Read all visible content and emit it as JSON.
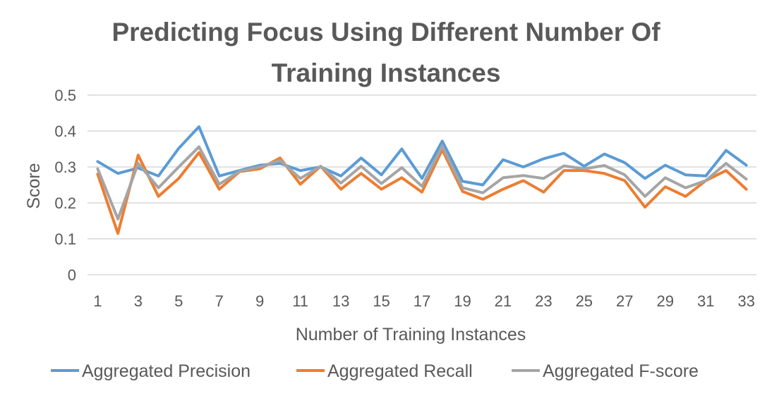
{
  "chart_data": {
    "type": "line",
    "title_lines": [
      "Predicting Focus Using Different Number Of",
      "Training Instances"
    ],
    "xlabel": "Number of Training Instances",
    "ylabel": "Score",
    "x": [
      1,
      2,
      3,
      4,
      5,
      6,
      7,
      8,
      9,
      10,
      11,
      12,
      13,
      14,
      15,
      16,
      17,
      18,
      19,
      20,
      21,
      22,
      23,
      24,
      25,
      26,
      27,
      28,
      29,
      30,
      31,
      32,
      33
    ],
    "x_tick_labels": [
      "1",
      "3",
      "5",
      "7",
      "9",
      "11",
      "13",
      "15",
      "17",
      "19",
      "21",
      "23",
      "25",
      "27",
      "29",
      "31",
      "33"
    ],
    "y_ticks": [
      "0",
      "0.1",
      "0.2",
      "0.3",
      "0.4",
      "0.5"
    ],
    "ylim": [
      0,
      0.5
    ],
    "grid": true,
    "legend_position": "bottom",
    "series": [
      {
        "name": "Aggregated Precision",
        "color": "#5b9bd5",
        "values": [
          0.315,
          0.282,
          0.297,
          0.275,
          0.352,
          0.412,
          0.275,
          0.29,
          0.305,
          0.31,
          0.29,
          0.3,
          0.275,
          0.325,
          0.278,
          0.35,
          0.268,
          0.372,
          0.26,
          0.25,
          0.32,
          0.3,
          0.323,
          0.338,
          0.302,
          0.336,
          0.312,
          0.268,
          0.305,
          0.278,
          0.275,
          0.346,
          0.305
        ]
      },
      {
        "name": "Aggregated Recall",
        "color": "#ed7d31",
        "values": [
          0.28,
          0.115,
          0.333,
          0.218,
          0.268,
          0.34,
          0.238,
          0.287,
          0.295,
          0.325,
          0.252,
          0.302,
          0.238,
          0.282,
          0.238,
          0.27,
          0.23,
          0.348,
          0.232,
          0.21,
          0.238,
          0.262,
          0.23,
          0.29,
          0.29,
          0.282,
          0.262,
          0.188,
          0.245,
          0.218,
          0.262,
          0.29,
          0.238
        ]
      },
      {
        "name": "Aggregated F-score",
        "color": "#a5a5a5",
        "values": [
          0.295,
          0.155,
          0.31,
          0.242,
          0.3,
          0.356,
          0.252,
          0.288,
          0.3,
          0.318,
          0.268,
          0.302,
          0.255,
          0.302,
          0.254,
          0.298,
          0.246,
          0.358,
          0.242,
          0.228,
          0.27,
          0.276,
          0.268,
          0.303,
          0.295,
          0.304,
          0.278,
          0.218,
          0.27,
          0.242,
          0.262,
          0.31,
          0.266
        ]
      }
    ]
  }
}
